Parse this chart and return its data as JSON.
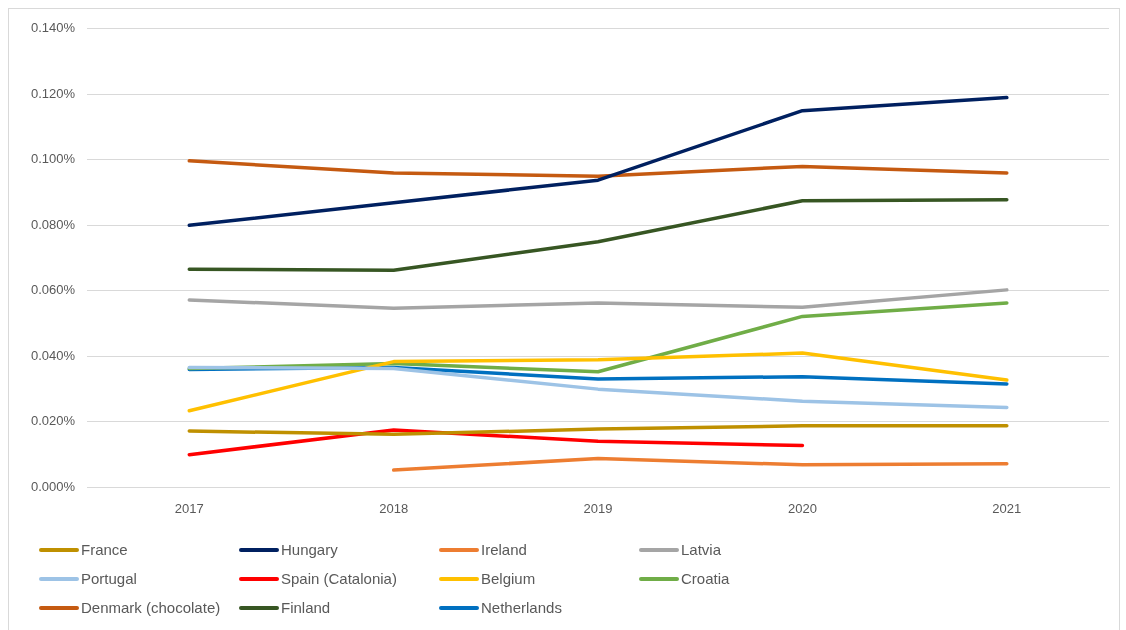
{
  "chart_data": {
    "type": "line",
    "categories": [
      "2017",
      "2018",
      "2019",
      "2020",
      "2021"
    ],
    "series": [
      {
        "name": "France",
        "color": "#bf9000",
        "values": [
          0.0172,
          0.0162,
          0.0178,
          0.0188,
          0.0188
        ]
      },
      {
        "name": "Hungary",
        "color": "#002060",
        "values": [
          0.08,
          0.0869,
          0.0938,
          0.115,
          0.119
        ]
      },
      {
        "name": "Ireland",
        "color": "#ed7d31",
        "values": [
          null,
          0.0053,
          0.0088,
          0.0069,
          0.0072
        ]
      },
      {
        "name": "Latvia",
        "color": "#a5a5a5",
        "values": [
          0.0572,
          0.0547,
          0.0563,
          0.055,
          0.0603
        ]
      },
      {
        "name": "Portugal",
        "color": "#9dc3e6",
        "values": [
          0.0366,
          0.0363,
          0.03,
          0.0263,
          0.0244
        ]
      },
      {
        "name": "Spain (Catalonia)",
        "color": "#ff0000",
        "values": [
          0.01,
          0.0175,
          0.0141,
          0.0128,
          null
        ]
      },
      {
        "name": "Belgium",
        "color": "#ffc000",
        "values": [
          0.0234,
          0.0384,
          0.039,
          0.041,
          0.0328
        ]
      },
      {
        "name": "Croatia",
        "color": "#70ad47",
        "values": [
          0.0363,
          0.0378,
          0.0353,
          0.0522,
          0.0563
        ]
      },
      {
        "name": "Denmark (chocolate)",
        "color": "#c55a11",
        "values": [
          0.0997,
          0.096,
          0.095,
          0.098,
          0.096
        ]
      },
      {
        "name": "Finland",
        "color": "#375623",
        "values": [
          0.0666,
          0.0663,
          0.075,
          0.0875,
          0.0878
        ]
      },
      {
        "name": "Netherlands",
        "color": "#0070c0",
        "values": [
          0.036,
          0.0366,
          0.0331,
          0.0338,
          0.0316
        ]
      }
    ],
    "ylim": [
      0,
      0.14
    ],
    "yticks": [
      {
        "value": 0,
        "label": "0.000%"
      },
      {
        "value": 0.02,
        "label": "0.020%"
      },
      {
        "value": 0.04,
        "label": "0.040%"
      },
      {
        "value": 0.06,
        "label": "0.060%"
      },
      {
        "value": 0.08,
        "label": "0.080%"
      },
      {
        "value": 0.1,
        "label": "0.100%"
      },
      {
        "value": 0.12,
        "label": "0.120%"
      },
      {
        "value": 0.14,
        "label": "0.140%"
      }
    ],
    "grid": "y",
    "legend": "bottom",
    "marker": "none",
    "line_style": "solid"
  }
}
